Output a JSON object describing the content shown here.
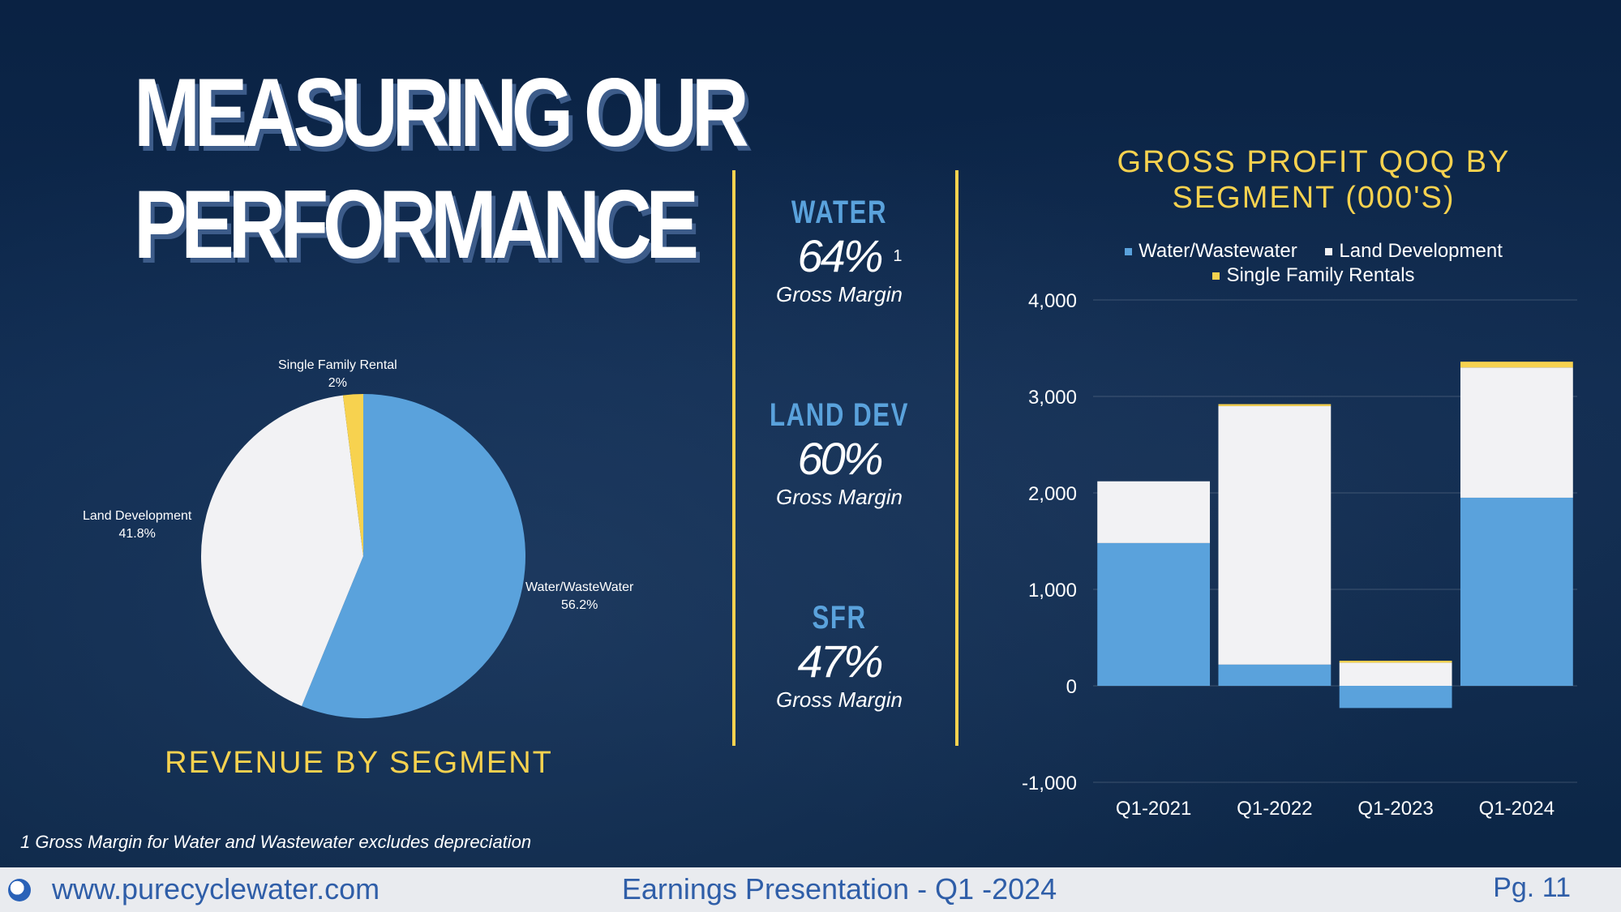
{
  "slide": {
    "title_line1": "MEASURING OUR",
    "title_line2": "PERFORMANCE",
    "revenue_title": "REVENUE BY SEGMENT",
    "footnote": "1 Gross Margin for Water and Wastewater excludes depreciation"
  },
  "kpis": [
    {
      "name": "WATER",
      "value": "64%",
      "sup": "1",
      "sub": "Gross Margin"
    },
    {
      "name": "LAND DEV",
      "value": "60%",
      "sup": "",
      "sub": "Gross Margin"
    },
    {
      "name": "SFR",
      "value": "47%",
      "sup": "",
      "sub": "Gross Margin"
    }
  ],
  "colors": {
    "water": "#5aa2dc",
    "land": "#f2f2f4",
    "sfr": "#f7d24f",
    "accent": "#f7d24f",
    "footer_text": "#2f5ea8"
  },
  "footer": {
    "url": "www.purecyclewater.com",
    "center": "Earnings Presentation - Q1 -2024",
    "page": "Pg. 11"
  },
  "chart_data": [
    {
      "type": "pie",
      "title": "REVENUE BY SEGMENT",
      "slices": [
        {
          "name": "Water/WasteWater",
          "label": "Water/WasteWater",
          "value": 56.2,
          "pct_label": "56.2%"
        },
        {
          "name": "Land Development",
          "label": "Land Development",
          "value": 41.8,
          "pct_label": "41.8%"
        },
        {
          "name": "Single Family Rental",
          "label": "Single Family Rental",
          "value": 2,
          "pct_label": "2%"
        }
      ]
    },
    {
      "type": "bar",
      "stacked": true,
      "title_line1": "GROSS PROFIT QOQ BY",
      "title_line2": "SEGMENT (000'S)",
      "categories": [
        "Q1-2021",
        "Q1-2022",
        "Q1-2023",
        "Q1-2024"
      ],
      "series": [
        {
          "name": "Water/Wastewater",
          "values": [
            1480,
            220,
            -230,
            1950
          ]
        },
        {
          "name": "Land Development",
          "values": [
            640,
            2680,
            240,
            1350
          ]
        },
        {
          "name": "Single Family Rentals",
          "values": [
            0,
            20,
            20,
            60
          ]
        }
      ],
      "ylim": [
        -1000,
        4000
      ],
      "yticks": [
        4000,
        3000,
        2000,
        1000,
        0,
        -1000
      ],
      "ytick_labels": [
        "4,000",
        "3,000",
        "2,000",
        "1,000",
        "0",
        "-1,000"
      ],
      "legend": "top"
    }
  ]
}
